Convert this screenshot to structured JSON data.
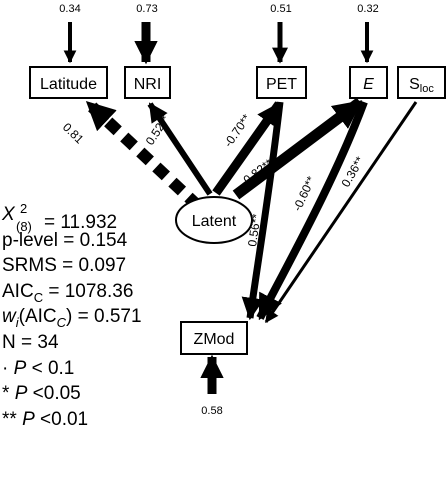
{
  "nodes": {
    "latitude": "Latitude",
    "nri": "NRI",
    "pet": "PET",
    "e": "E",
    "sloc": "S",
    "sloc_sub": "loc",
    "latent": "Latent",
    "zmod": "ZMod"
  },
  "residuals": {
    "latitude": "0.34",
    "nri": "0.73",
    "pet": "0.51",
    "e": "0.32",
    "zmod": "0.58"
  },
  "paths": {
    "latent_latitude": "0.81",
    "latent_nri": "0.52**",
    "latent_pet": "-0.70**",
    "latent_e": "-0.82**",
    "pet_zmod": "0.56**",
    "e_zmod": "-0.60**",
    "sloc_zmod": "0.36**"
  },
  "stats": {
    "chi_symbol": "X",
    "chi_sup": "2",
    "chi_sub": "(8)",
    "chi_value": "= 11.932",
    "p_level": "p-level = 0.154",
    "srms": "SRMS = 0.097",
    "aic_prefix": "AIC",
    "aic_sub": "C",
    "aic_value": " = 1078.36",
    "w_symbol": "w",
    "w_sub": "i",
    "w_mid": "(AIC",
    "w_sub2": "C",
    "w_value": ") = 0.571",
    "n": "N = 34",
    "sig1_prefix": "· ",
    "sig1_p": "P",
    "sig1_rest": " < 0.1",
    "sig2_prefix": "* ",
    "sig2_p": "P",
    "sig2_rest": " <0.05",
    "sig3_prefix": "** ",
    "sig3_p": "P",
    "sig3_rest": " <0.01"
  }
}
